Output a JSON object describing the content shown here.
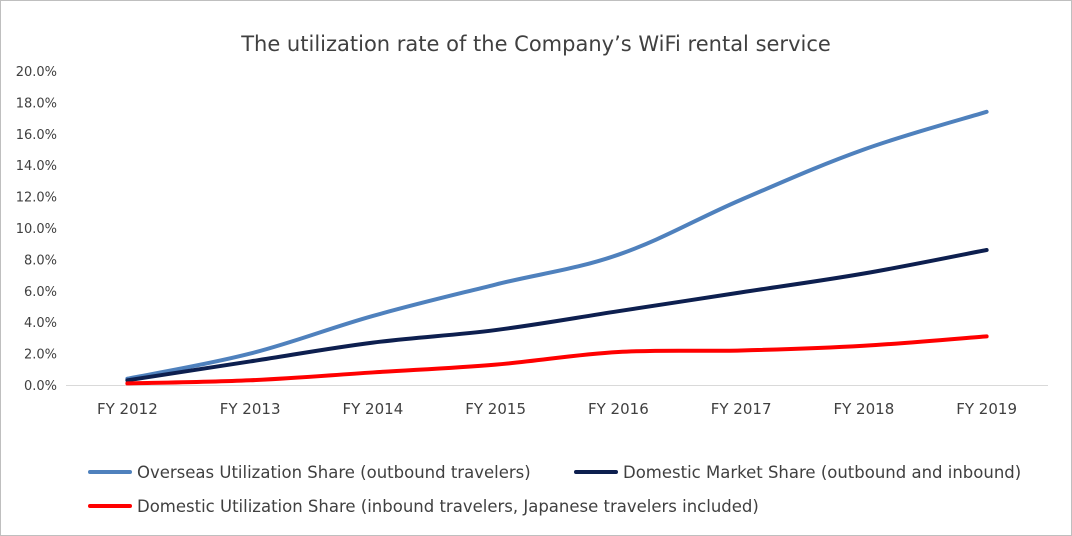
{
  "chart_data": {
    "type": "line",
    "title": "The utilization rate of the Company’s WiFi rental service",
    "categories": [
      "FY 2012",
      "FY 2013",
      "FY 2014",
      "FY 2015",
      "FY 2016",
      "FY 2017",
      "FY 2018",
      "FY 2019"
    ],
    "y_ticks": [
      "0.0%",
      "2.0%",
      "4.0%",
      "6.0%",
      "8.0%",
      "10.0%",
      "12.0%",
      "14.0%",
      "16.0%",
      "18.0%",
      "20.0%"
    ],
    "ylim": [
      0,
      20
    ],
    "y_unit": "%",
    "grid": false,
    "legend_position": "bottom",
    "series": [
      {
        "name": "Overseas Utilization Share (outbound travelers)",
        "color": "#4f81bd",
        "values": [
          0.4,
          2.0,
          4.4,
          6.4,
          8.3,
          11.8,
          15.0,
          17.4
        ]
      },
      {
        "name": "Domestic Market Share (outbound and inbound)",
        "color": "#0d1f4f",
        "values": [
          0.3,
          1.5,
          2.7,
          3.5,
          4.7,
          5.9,
          7.1,
          8.6
        ]
      },
      {
        "name": "Domestic Utilization Share (inbound travelers, Japanese travelers included)",
        "color": "#ff0000",
        "values": [
          0.1,
          0.3,
          0.8,
          1.3,
          2.1,
          2.2,
          2.5,
          3.1
        ]
      }
    ]
  }
}
